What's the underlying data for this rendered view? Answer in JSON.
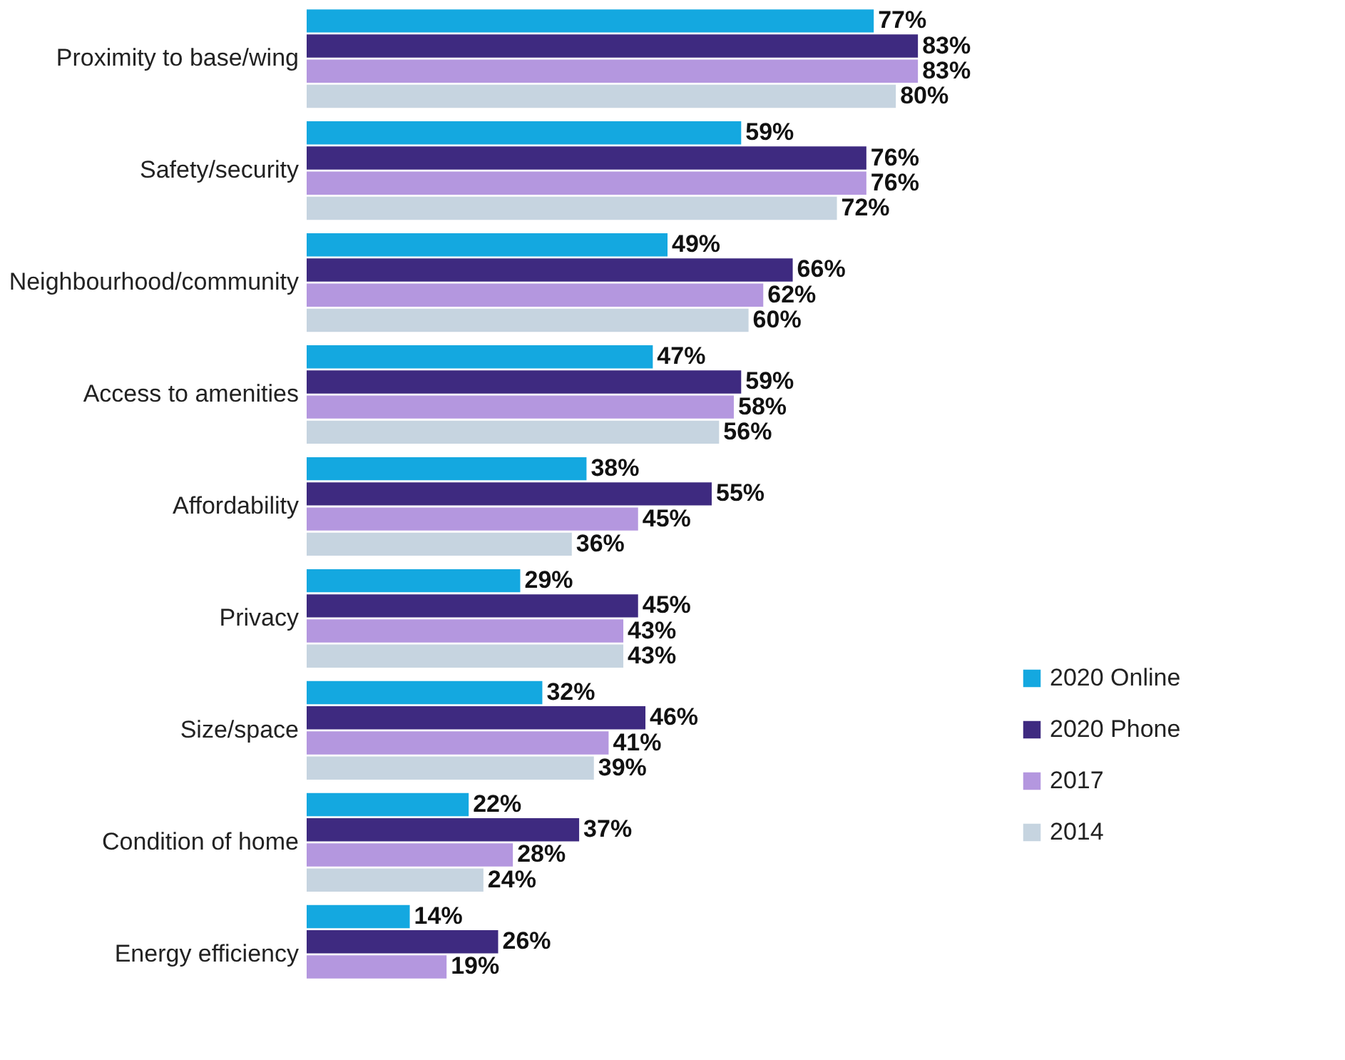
{
  "chart_data": {
    "type": "bar",
    "orientation": "horizontal",
    "categories": [
      "Proximity to base/wing",
      "Safety/security",
      "Neighbourhood/community",
      "Access to amenities",
      "Affordability",
      "Privacy",
      "Size/space",
      "Condition of home",
      "Energy efficiency"
    ],
    "series": [
      {
        "name": "2020 Online",
        "color": "#14a8e0",
        "values": [
          77,
          59,
          49,
          47,
          38,
          29,
          32,
          22,
          14
        ],
        "value_labels": [
          "77%",
          "59%",
          "49%",
          "47%",
          "38%",
          "29%",
          "32%",
          "22%",
          "14%"
        ]
      },
      {
        "name": "2020 Phone",
        "color": "#3e2a80",
        "values": [
          83,
          76,
          66,
          59,
          55,
          45,
          46,
          37,
          26
        ],
        "value_labels": [
          "83%",
          "76%",
          "66%",
          "59%",
          "55%",
          "45%",
          "46%",
          "37%",
          "26%"
        ]
      },
      {
        "name": "2017",
        "color": "#b497df",
        "values": [
          83,
          76,
          62,
          58,
          45,
          43,
          41,
          28,
          19
        ],
        "value_labels": [
          "83%",
          "76%",
          "62%",
          "58%",
          "45%",
          "43%",
          "41%",
          "28%",
          "19%"
        ]
      },
      {
        "name": "2014",
        "color": "#c6d4e0",
        "values": [
          80,
          72,
          60,
          56,
          36,
          43,
          39,
          24,
          null
        ],
        "value_labels": [
          "80%",
          "72%",
          "60%",
          "56%",
          "36%",
          "43%",
          "39%",
          "24%",
          null
        ]
      }
    ],
    "legend": "bottom right",
    "grid": false
  }
}
